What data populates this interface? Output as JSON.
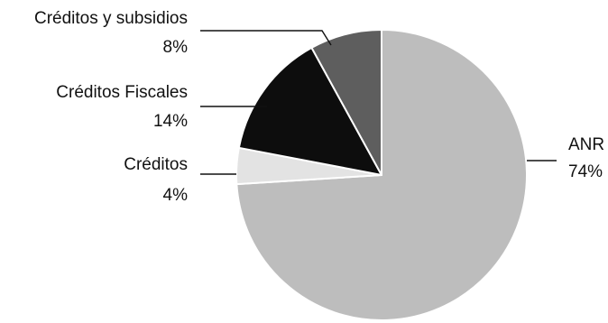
{
  "chart_data": {
    "type": "pie",
    "title": "",
    "slices": [
      {
        "label": "ANR",
        "percent_label": "74%",
        "value": 74,
        "color": "#bdbdbd"
      },
      {
        "label": "Créditos",
        "percent_label": "4%",
        "value": 4,
        "color": "#e3e3e3"
      },
      {
        "label": "Créditos Fiscales",
        "percent_label": "14%",
        "value": 14,
        "color": "#0d0d0d"
      },
      {
        "label": "Créditos y subsidios",
        "percent_label": "8%",
        "value": 8,
        "color": "#5e5e5e"
      }
    ],
    "legend": "none",
    "labels": "outside with leader lines"
  }
}
